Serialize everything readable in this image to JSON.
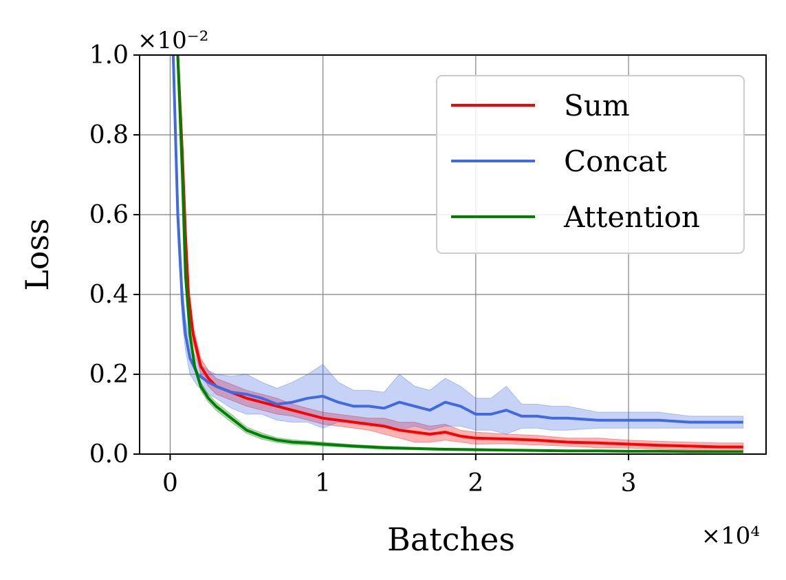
{
  "chart_data": {
    "type": "line",
    "xlabel": "Batches",
    "ylabel": "Loss",
    "x_multiplier_label": "×10⁴",
    "y_multiplier_label": "×10⁻²",
    "xlim": [
      -0.2,
      3.9
    ],
    "ylim": [
      0.0,
      1.0
    ],
    "xticks": [
      0,
      1,
      2,
      3
    ],
    "xtick_labels": [
      "0",
      "1",
      "2",
      "3"
    ],
    "yticks": [
      0.0,
      0.2,
      0.4,
      0.6,
      0.8,
      1.0
    ],
    "ytick_labels": [
      "0.0",
      "0.2",
      "0.4",
      "0.6",
      "0.8",
      "1.0"
    ],
    "grid": true,
    "legend_position": "top-right",
    "series": [
      {
        "name": "Sum",
        "color": "#ff0000",
        "x": [
          0.05,
          0.08,
          0.1,
          0.12,
          0.15,
          0.2,
          0.25,
          0.3,
          0.4,
          0.5,
          0.6,
          0.7,
          0.8,
          0.9,
          1.0,
          1.1,
          1.2,
          1.3,
          1.4,
          1.5,
          1.6,
          1.7,
          1.8,
          1.9,
          2.0,
          2.2,
          2.4,
          2.6,
          2.8,
          3.0,
          3.2,
          3.4,
          3.6,
          3.75
        ],
        "y": [
          1.0,
          0.75,
          0.55,
          0.4,
          0.3,
          0.22,
          0.19,
          0.17,
          0.155,
          0.14,
          0.13,
          0.12,
          0.11,
          0.1,
          0.09,
          0.085,
          0.08,
          0.075,
          0.07,
          0.06,
          0.055,
          0.05,
          0.055,
          0.045,
          0.04,
          0.038,
          0.035,
          0.03,
          0.028,
          0.025,
          0.022,
          0.02,
          0.018,
          0.018
        ],
        "band": [
          0.04,
          0.03,
          0.03,
          0.025,
          0.02,
          0.02,
          0.02,
          0.02,
          0.02,
          0.02,
          0.02,
          0.02,
          0.015,
          0.015,
          0.015,
          0.015,
          0.015,
          0.015,
          0.02,
          0.02,
          0.025,
          0.02,
          0.02,
          0.015,
          0.015,
          0.012,
          0.012,
          0.01,
          0.012,
          0.01,
          0.01,
          0.01,
          0.01,
          0.01
        ]
      },
      {
        "name": "Concat",
        "color": "#4169e1",
        "x": [
          0.02,
          0.05,
          0.08,
          0.1,
          0.13,
          0.18,
          0.25,
          0.3,
          0.4,
          0.5,
          0.6,
          0.7,
          0.8,
          0.9,
          1.0,
          1.1,
          1.2,
          1.3,
          1.4,
          1.5,
          1.6,
          1.7,
          1.8,
          1.9,
          2.0,
          2.1,
          2.2,
          2.3,
          2.4,
          2.5,
          2.6,
          2.8,
          3.0,
          3.2,
          3.4,
          3.6,
          3.75
        ],
        "y": [
          1.0,
          0.6,
          0.38,
          0.3,
          0.24,
          0.2,
          0.18,
          0.17,
          0.155,
          0.15,
          0.14,
          0.125,
          0.13,
          0.14,
          0.145,
          0.13,
          0.12,
          0.12,
          0.115,
          0.13,
          0.12,
          0.11,
          0.13,
          0.12,
          0.1,
          0.1,
          0.11,
          0.095,
          0.095,
          0.09,
          0.09,
          0.085,
          0.085,
          0.085,
          0.08,
          0.08,
          0.08
        ],
        "band": [
          0.05,
          0.06,
          0.05,
          0.04,
          0.04,
          0.03,
          0.03,
          0.03,
          0.04,
          0.05,
          0.04,
          0.04,
          0.05,
          0.06,
          0.08,
          0.05,
          0.04,
          0.04,
          0.04,
          0.07,
          0.05,
          0.05,
          0.06,
          0.05,
          0.04,
          0.04,
          0.06,
          0.03,
          0.03,
          0.03,
          0.03,
          0.02,
          0.02,
          0.02,
          0.015,
          0.015,
          0.015
        ]
      },
      {
        "name": "Attention",
        "color": "#008000",
        "x": [
          0.05,
          0.08,
          0.1,
          0.13,
          0.16,
          0.2,
          0.25,
          0.3,
          0.4,
          0.5,
          0.6,
          0.7,
          0.8,
          0.9,
          1.0,
          1.2,
          1.4,
          1.6,
          1.8,
          2.0,
          2.2,
          2.4,
          2.6,
          2.8,
          3.0,
          3.2,
          3.4,
          3.6,
          3.75
        ],
        "y": [
          1.0,
          0.7,
          0.45,
          0.3,
          0.22,
          0.17,
          0.14,
          0.12,
          0.09,
          0.06,
          0.045,
          0.035,
          0.03,
          0.028,
          0.025,
          0.02,
          0.016,
          0.014,
          0.012,
          0.011,
          0.01,
          0.009,
          0.008,
          0.008,
          0.007,
          0.007,
          0.006,
          0.006,
          0.006
        ],
        "band": [
          0.03,
          0.03,
          0.02,
          0.015,
          0.01,
          0.01,
          0.01,
          0.01,
          0.01,
          0.008,
          0.008,
          0.006,
          0.006,
          0.005,
          0.005,
          0.004,
          0.004,
          0.003,
          0.003,
          0.003,
          0.002,
          0.002,
          0.002,
          0.002,
          0.002,
          0.002,
          0.002,
          0.002,
          0.002
        ]
      }
    ]
  }
}
